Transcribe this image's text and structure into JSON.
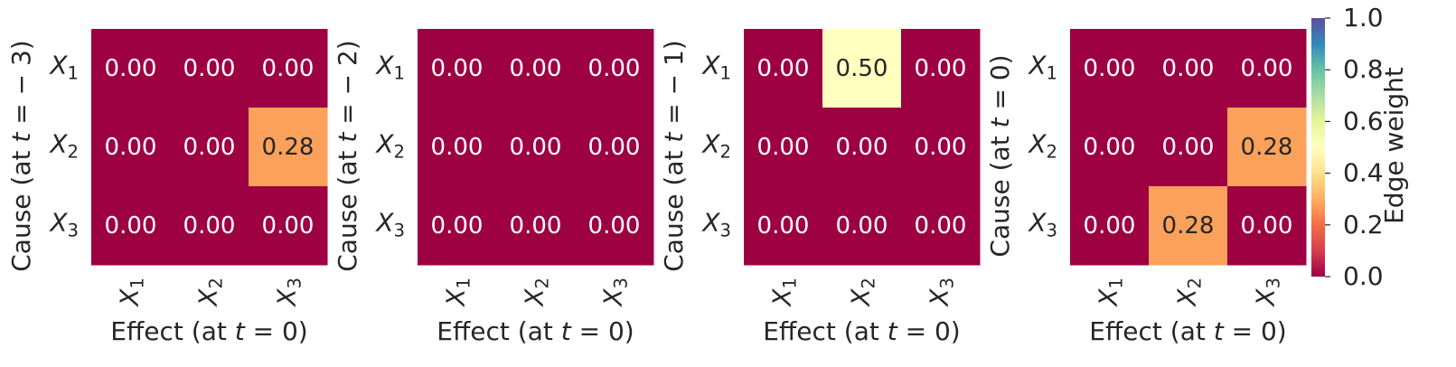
{
  "chart_data": [
    {
      "type": "heatmap",
      "ylabel": "Cause (at t = − 3)",
      "xlabel": "Effect (at t = 0)",
      "row_labels": [
        "X1",
        "X2",
        "X3"
      ],
      "col_labels": [
        "X1",
        "X2",
        "X3"
      ],
      "values": [
        [
          0.0,
          0.0,
          0.0
        ],
        [
          0.0,
          0.0,
          0.28
        ],
        [
          0.0,
          0.0,
          0.0
        ]
      ]
    },
    {
      "type": "heatmap",
      "ylabel": "Cause (at t = − 2)",
      "xlabel": "Effect (at t = 0)",
      "row_labels": [
        "X1",
        "X2",
        "X3"
      ],
      "col_labels": [
        "X1",
        "X2",
        "X3"
      ],
      "values": [
        [
          0.0,
          0.0,
          0.0
        ],
        [
          0.0,
          0.0,
          0.0
        ],
        [
          0.0,
          0.0,
          0.0
        ]
      ]
    },
    {
      "type": "heatmap",
      "ylabel": "Cause (at t = − 1)",
      "xlabel": "Effect (at t = 0)",
      "row_labels": [
        "X1",
        "X2",
        "X3"
      ],
      "col_labels": [
        "X1",
        "X2",
        "X3"
      ],
      "values": [
        [
          0.0,
          0.5,
          0.0
        ],
        [
          0.0,
          0.0,
          0.0
        ],
        [
          0.0,
          0.0,
          0.0
        ]
      ]
    },
    {
      "type": "heatmap",
      "ylabel": "Cause (at t = 0)",
      "xlabel": "Effect (at t = 0)",
      "row_labels": [
        "X1",
        "X2",
        "X3"
      ],
      "col_labels": [
        "X1",
        "X2",
        "X3"
      ],
      "values": [
        [
          0.0,
          0.0,
          0.0
        ],
        [
          0.0,
          0.0,
          0.28
        ],
        [
          0.0,
          0.28,
          0.0
        ]
      ]
    }
  ],
  "colorbar": {
    "label": "Edge weight",
    "range": [
      0.0,
      1.0
    ],
    "ticks": [
      "0.0",
      "0.2",
      "0.4",
      "0.6",
      "0.8",
      "1.0"
    ],
    "colormap": "Spectral",
    "stops": [
      "#9e0142",
      "#d53e4f",
      "#f46d43",
      "#fdae61",
      "#fee08b",
      "#ffffbf",
      "#e6f598",
      "#abdda4",
      "#66c2a5",
      "#3288bd",
      "#5e4fa2"
    ]
  },
  "value_format_decimals": 2
}
